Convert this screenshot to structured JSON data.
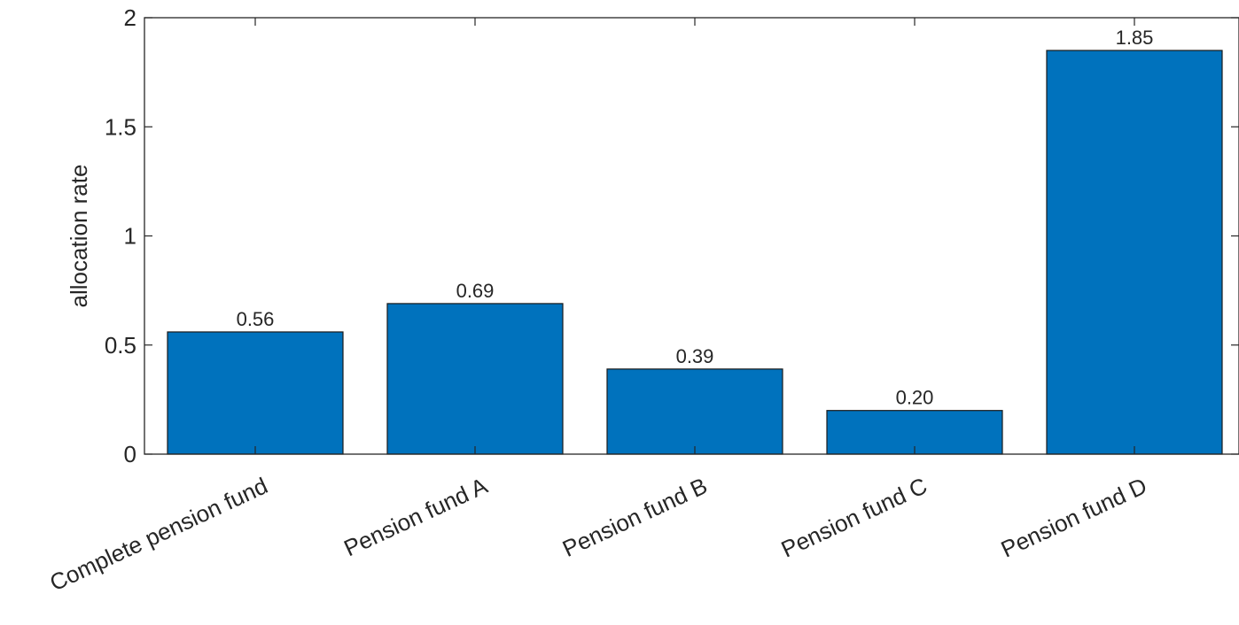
{
  "chart_data": {
    "type": "bar",
    "categories": [
      "Complete pension fund",
      "Pension fund A",
      "Pension fund B",
      "Pension fund C",
      "Pension fund D"
    ],
    "values": [
      0.56,
      0.69,
      0.39,
      0.2,
      1.85
    ],
    "data_labels": [
      "0.56",
      "0.69",
      "0.39",
      "0.20",
      "1.85"
    ],
    "ylabel": "allocation rate",
    "xlabel": "",
    "ylim": [
      0,
      2
    ],
    "yticks": [
      0,
      0.5,
      1,
      1.5,
      2
    ],
    "ytick_labels": [
      "0",
      "0.5",
      "1",
      "1.5",
      "2"
    ],
    "bar_color": "#0072BD",
    "grid": false
  }
}
